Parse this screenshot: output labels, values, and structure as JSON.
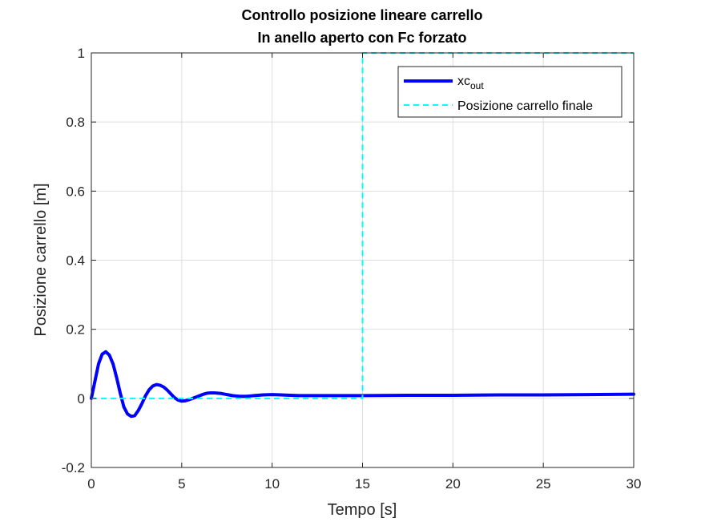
{
  "chart_data": {
    "type": "line",
    "title": [
      "Controllo posizione lineare carrello",
      "In anello aperto con Fc forzato"
    ],
    "xlabel": "Tempo [s]",
    "ylabel": "Posizione carrello [m]",
    "xlim": [
      0,
      30
    ],
    "ylim": [
      -0.2,
      1
    ],
    "xticks": [
      0,
      5,
      10,
      15,
      20,
      25,
      30
    ],
    "yticks": [
      -0.2,
      0,
      0.2,
      0.4,
      0.6,
      0.8,
      1
    ],
    "xtick_labels": [
      "0",
      "5",
      "10",
      "15",
      "20",
      "25",
      "30"
    ],
    "ytick_labels": [
      "-0.2",
      "0",
      "0.2",
      "0.4",
      "0.6",
      "0.8",
      "1"
    ],
    "grid": true,
    "legend_position": "top-right",
    "series": [
      {
        "name_main": "xc",
        "name_sub": "out",
        "color": "#0000ff",
        "style": "solid",
        "x": [
          0,
          0.2,
          0.4,
          0.6,
          0.8,
          1.0,
          1.2,
          1.4,
          1.6,
          1.8,
          2.0,
          2.2,
          2.4,
          2.6,
          2.8,
          3.0,
          3.2,
          3.4,
          3.6,
          3.8,
          4.0,
          4.2,
          4.4,
          4.6,
          4.8,
          5.0,
          5.2,
          5.4,
          5.6,
          5.8,
          6.0,
          6.2,
          6.4,
          6.6,
          6.8,
          7.0,
          7.2,
          7.4,
          7.6,
          7.8,
          8.0,
          8.2,
          8.4,
          8.6,
          8.8,
          9.0,
          9.5,
          10.0,
          10.5,
          11.0,
          11.5,
          12.0,
          13.0,
          14.0,
          15.0,
          17.5,
          20.0,
          22.5,
          25.0,
          27.5,
          30.0
        ],
        "y": [
          0,
          0.05,
          0.1,
          0.128,
          0.135,
          0.125,
          0.1,
          0.06,
          0.015,
          -0.025,
          -0.045,
          -0.052,
          -0.05,
          -0.035,
          -0.015,
          0.008,
          0.025,
          0.036,
          0.04,
          0.038,
          0.033,
          0.024,
          0.013,
          0.002,
          -0.005,
          -0.008,
          -0.007,
          -0.004,
          0.0,
          0.004,
          0.008,
          0.012,
          0.015,
          0.016,
          0.016,
          0.015,
          0.014,
          0.012,
          0.01,
          0.008,
          0.007,
          0.006,
          0.006,
          0.006,
          0.007,
          0.008,
          0.01,
          0.011,
          0.01,
          0.009,
          0.008,
          0.008,
          0.008,
          0.008,
          0.008,
          0.009,
          0.009,
          0.01,
          0.01,
          0.011,
          0.012
        ]
      },
      {
        "name": "Posizione carrello finale",
        "color": "#00ffff",
        "style": "dashed",
        "x": [
          0,
          15,
          15,
          30
        ],
        "y": [
          0,
          0,
          1,
          1
        ]
      }
    ]
  }
}
